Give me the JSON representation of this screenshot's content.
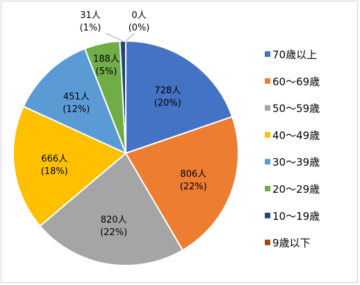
{
  "chart_data": {
    "type": "pie",
    "title": "",
    "legend_placement": "right",
    "slices": [
      {
        "name": "70歳以上",
        "value": 728,
        "label": "728人",
        "pct_label": "(20%)",
        "color": "#4472C4"
      },
      {
        "name": "60～69歳",
        "value": 806,
        "label": "806人",
        "pct_label": "(22%)",
        "color": "#ED7D31"
      },
      {
        "name": "50～59歳",
        "value": 820,
        "label": "820人",
        "pct_label": "(22%)",
        "color": "#A5A5A5"
      },
      {
        "name": "40～49歳",
        "value": 666,
        "label": "666人",
        "pct_label": "(18%)",
        "color": "#FFC000"
      },
      {
        "name": "30～39歳",
        "value": 451,
        "label": "451人",
        "pct_label": "(12%)",
        "color": "#5B9BD5"
      },
      {
        "name": "20～29歳",
        "value": 188,
        "label": "188人",
        "pct_label": "(5%)",
        "color": "#70AD47"
      },
      {
        "name": "10～19歳",
        "value": 31,
        "label": "31人",
        "pct_label": "(1%)",
        "color": "#264478"
      },
      {
        "name": "9歳以下",
        "value": 0,
        "label": "0人",
        "pct_label": "(0%)",
        "color": "#9E480E"
      }
    ]
  }
}
